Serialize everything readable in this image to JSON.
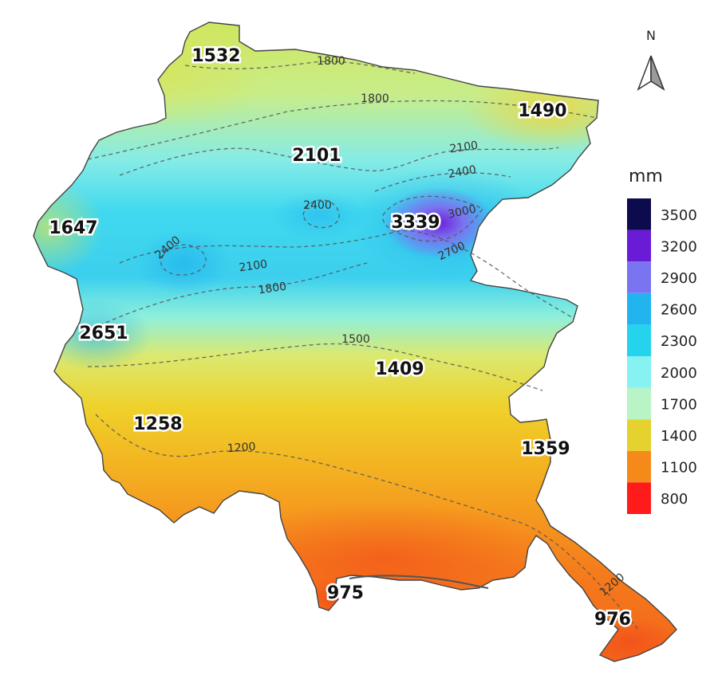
{
  "map": {
    "unit_label": "mm",
    "north_label": "N",
    "legend": [
      {
        "value": "3500",
        "color": "#0b0b4d"
      },
      {
        "value": "3200",
        "color": "#6a1bd6"
      },
      {
        "value": "2900",
        "color": "#7b74f0"
      },
      {
        "value": "2600",
        "color": "#22b4ef"
      },
      {
        "value": "2300",
        "color": "#25d3ec"
      },
      {
        "value": "2000",
        "color": "#86f2f2"
      },
      {
        "value": "1700",
        "color": "#b8f4c6"
      },
      {
        "value": "1400",
        "color": "#e6d22e"
      },
      {
        "value": "1100",
        "color": "#f58a1a"
      },
      {
        "value": "800",
        "color": "#ff1b1b"
      }
    ],
    "stations": [
      "1532",
      "1490",
      "2101",
      "1647",
      "3339",
      "2651",
      "1409",
      "1258",
      "1359",
      "975",
      "976"
    ],
    "contour_labels": [
      "1800",
      "1800",
      "2100",
      "2400",
      "2400",
      "3000",
      "2400",
      "2700",
      "2100",
      "1800",
      "1500",
      "1200",
      "1200"
    ]
  }
}
